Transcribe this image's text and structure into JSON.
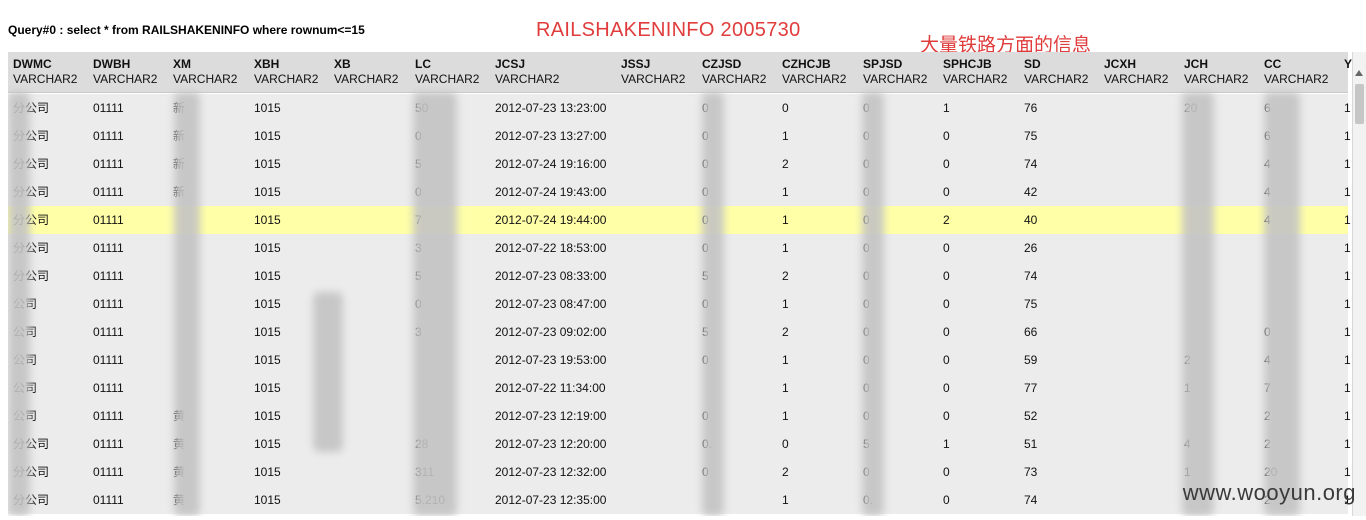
{
  "query_label": "Query#0 : select * from RAILSHAKENINFO where rownum<=15",
  "annotations": {
    "title": "RAILSHAKENINFO 2005730",
    "note": "大量铁路方面的信息"
  },
  "table": {
    "columns": [
      {
        "name": "DWMC",
        "type": "VARCHAR2"
      },
      {
        "name": "DWBH",
        "type": "VARCHAR2"
      },
      {
        "name": "XM",
        "type": "VARCHAR2"
      },
      {
        "name": "XBH",
        "type": "VARCHAR2"
      },
      {
        "name": "XB",
        "type": "VARCHAR2"
      },
      {
        "name": "LC",
        "type": "VARCHAR2"
      },
      {
        "name": "JCSJ",
        "type": "VARCHAR2"
      },
      {
        "name": "JSSJ",
        "type": "VARCHAR2"
      },
      {
        "name": "CZJSD",
        "type": "VARCHAR2"
      },
      {
        "name": "CZHCJB",
        "type": "VARCHAR2"
      },
      {
        "name": "SPJSD",
        "type": "VARCHAR2"
      },
      {
        "name": "SPHCJB",
        "type": "VARCHAR2"
      },
      {
        "name": "SD",
        "type": "VARCHAR2"
      },
      {
        "name": "JCXH",
        "type": "VARCHAR2"
      },
      {
        "name": "JCH",
        "type": "VARCHAR2"
      },
      {
        "name": "CC",
        "type": "VARCHAR2"
      },
      {
        "name": "Y",
        "type": ""
      }
    ],
    "rows": [
      [
        "分公司",
        "01111",
        "新",
        "1015",
        "",
        "50",
        "2012-07-23 13:23:00",
        "",
        "0",
        "0",
        "0",
        "1",
        "76",
        "",
        "20",
        "6",
        "1"
      ],
      [
        "分公司",
        "01111",
        "新",
        "1015",
        "",
        "0",
        "2012-07-23 13:27:00",
        "",
        "0",
        "1",
        "0",
        "0",
        "75",
        "",
        "",
        "6",
        "1"
      ],
      [
        "分公司",
        "01111",
        "新",
        "1015",
        "",
        "5",
        "2012-07-24 19:16:00",
        "",
        "0",
        "2",
        "0",
        "0",
        "74",
        "",
        "",
        "4",
        "1"
      ],
      [
        "分公司",
        "01111",
        "新",
        "1015",
        "",
        "0",
        "2012-07-24 19:43:00",
        "",
        "0",
        "1",
        "0",
        "0",
        "42",
        "",
        "",
        "4",
        "1"
      ],
      [
        "分公司",
        "01111",
        "",
        "1015",
        "",
        "7",
        "2012-07-24 19:44:00",
        "",
        "0",
        "1",
        "0",
        "2",
        "40",
        "",
        "",
        "4",
        "1"
      ],
      [
        "分公司",
        "01111",
        "",
        "1015",
        "",
        "3",
        "2012-07-22 18:53:00",
        "",
        "0",
        "1",
        "0",
        "0",
        "26",
        "",
        "",
        "",
        "1"
      ],
      [
        "分公司",
        "01111",
        "",
        "1015",
        "",
        "5",
        "2012-07-23 08:33:00",
        "",
        "5",
        "2",
        "0",
        "0",
        "74",
        "",
        "",
        "",
        "1"
      ],
      [
        "公司",
        "01111",
        "",
        "1015",
        "",
        "0",
        "2012-07-23 08:47:00",
        "",
        "0",
        "1",
        "0",
        "0",
        "75",
        "",
        "",
        "",
        "1"
      ],
      [
        "公司",
        "01111",
        "",
        "1015",
        "",
        "3",
        "2012-07-23 09:02:00",
        "",
        "5",
        "2",
        "0",
        "0",
        "66",
        "",
        "",
        "0",
        "1"
      ],
      [
        "公司",
        "01111",
        "",
        "1015",
        "",
        "",
        "2012-07-23 19:53:00",
        "",
        "0",
        "1",
        "0",
        "0",
        "59",
        "",
        "2",
        "4",
        "1"
      ],
      [
        "公司",
        "01111",
        "",
        "1015",
        "",
        "",
        "2012-07-22 11:34:00",
        "",
        "",
        "1",
        "0",
        "0",
        "77",
        "",
        "1",
        "7",
        "1"
      ],
      [
        "公司",
        "01111",
        "黄",
        "1015",
        "",
        "",
        "2012-07-23 12:19:00",
        "",
        "0",
        "1",
        "0",
        "0",
        "52",
        "",
        "",
        "2",
        "1"
      ],
      [
        "分公司",
        "01111",
        "黄",
        "1015",
        "",
        "28",
        "2012-07-23 12:20:00",
        "",
        "0.",
        "0",
        "5",
        "1",
        "51",
        "",
        "4",
        "2",
        "1"
      ],
      [
        "分公司",
        "01111",
        "黄",
        "1015",
        "",
        "311",
        "2012-07-23 12:32:00",
        "",
        "0",
        "2",
        "0",
        "0",
        "73",
        "",
        "1",
        "20",
        "1"
      ],
      [
        "分公司",
        "01111",
        "黄",
        "1015",
        "",
        "5.210",
        "2012-07-23 12:35:00",
        "",
        "",
        "1",
        "0.",
        "0",
        "74",
        "",
        "",
        "2",
        "1"
      ]
    ],
    "selected_row": 4
  },
  "watermark": "www.wooyun.org",
  "colors": {
    "annotation": "#e03c3c",
    "header_bg": "#dcdcdc",
    "row_bg": "#ececec",
    "selected_row_bg": "#ffffa8"
  }
}
